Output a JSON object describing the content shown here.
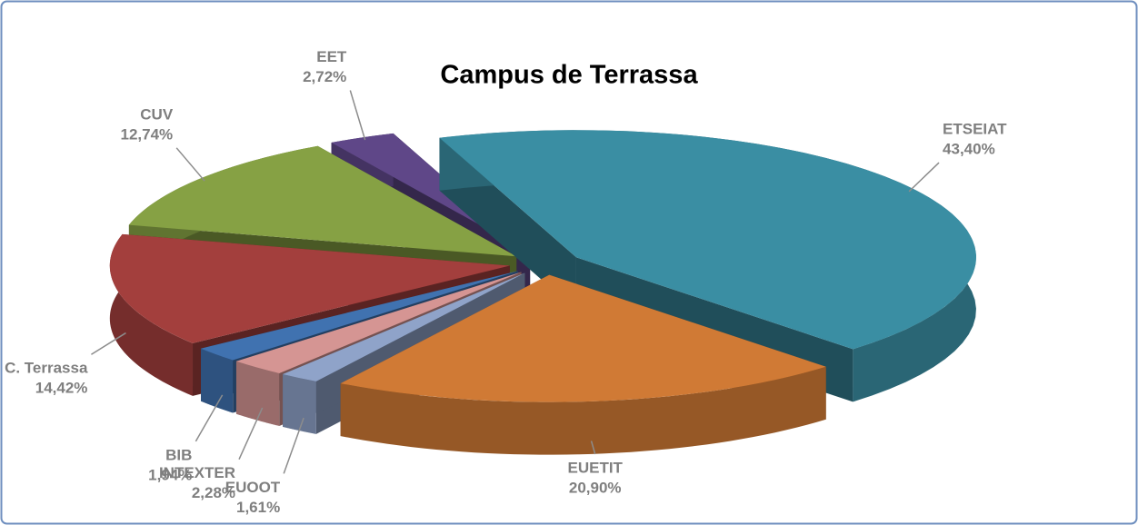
{
  "chart_data": {
    "type": "pie",
    "title": "Campus de Terrassa",
    "categories": [
      "ETSEIAT",
      "EUETIT",
      "EUOOT",
      "INTEXTER",
      "BIB",
      "C. Terrassa",
      "CUV",
      "EET"
    ],
    "values": [
      43.4,
      20.9,
      1.61,
      2.28,
      1.94,
      14.42,
      12.74,
      2.72
    ],
    "value_labels": [
      "43,40%",
      "20,90%",
      "1,61%",
      "2,28%",
      "1,94%",
      "14,42%",
      "12,74%",
      "2,72%"
    ],
    "colors": [
      "#3a8ea3",
      "#d07a35",
      "#8fa3c9",
      "#d59593",
      "#4072b0",
      "#a33f3d",
      "#86a144",
      "#5f4788"
    ]
  }
}
